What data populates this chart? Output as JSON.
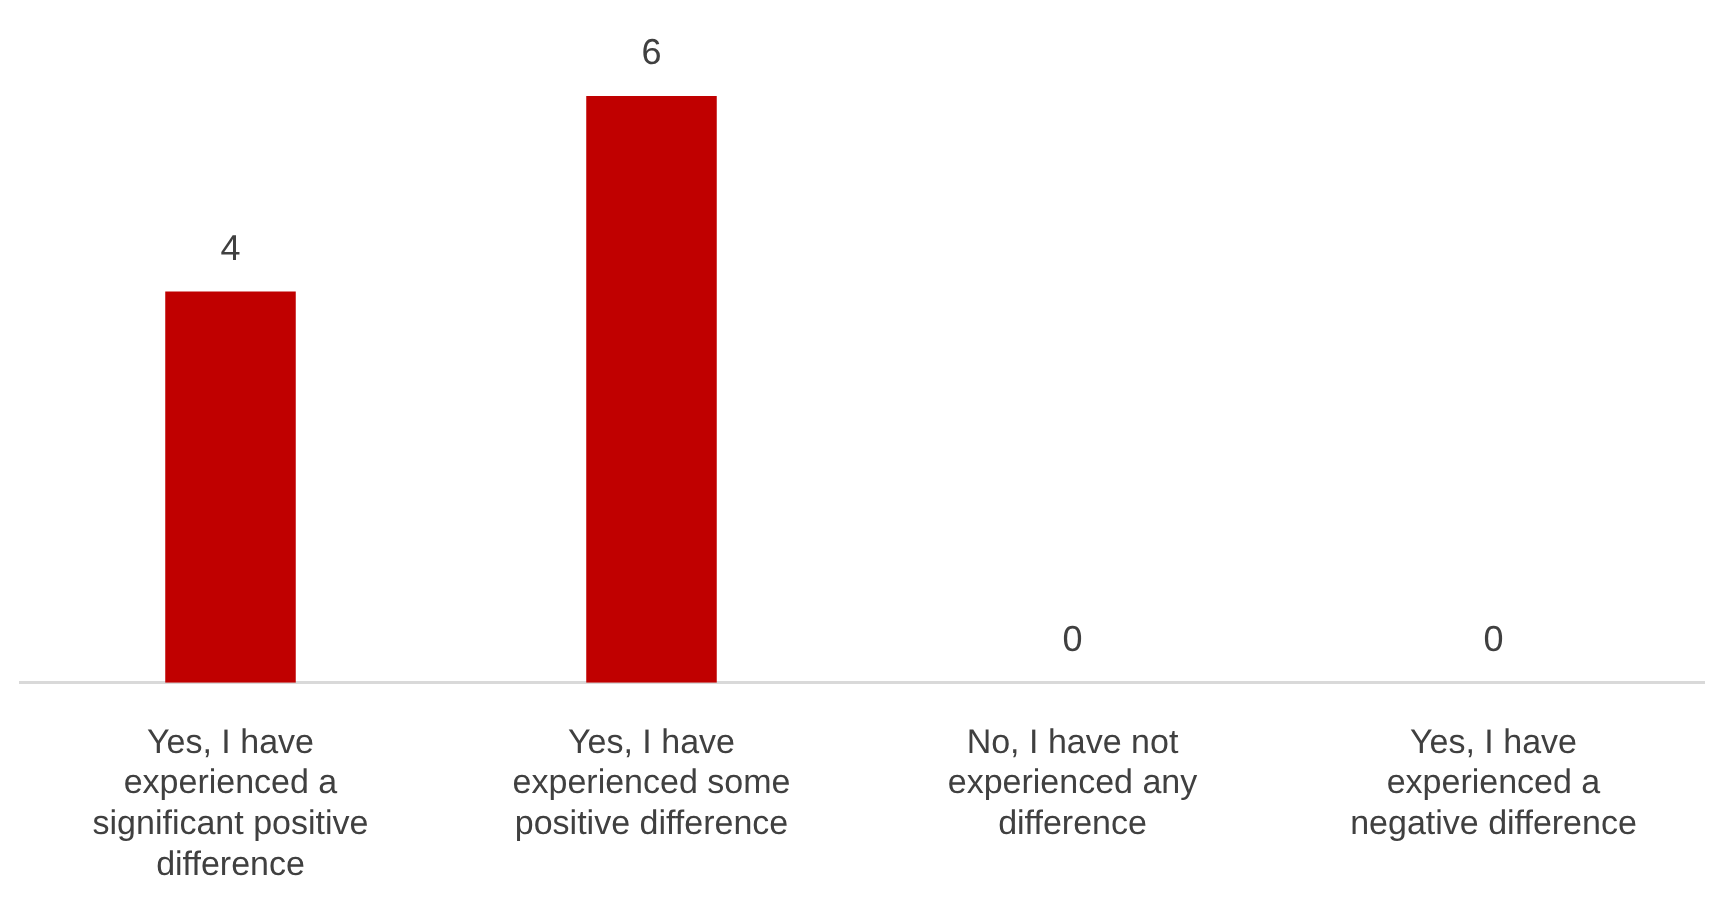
{
  "chart_data": {
    "type": "bar",
    "categories": [
      "Yes, I have experienced a significant positive difference",
      "Yes, I have experienced some positive difference",
      "No, I have not experienced any difference",
      "Yes, I have experienced a negative difference"
    ],
    "values": [
      4,
      6,
      0,
      0
    ],
    "color": "#c00000",
    "data_labels": true,
    "grid": false,
    "legend": false
  }
}
